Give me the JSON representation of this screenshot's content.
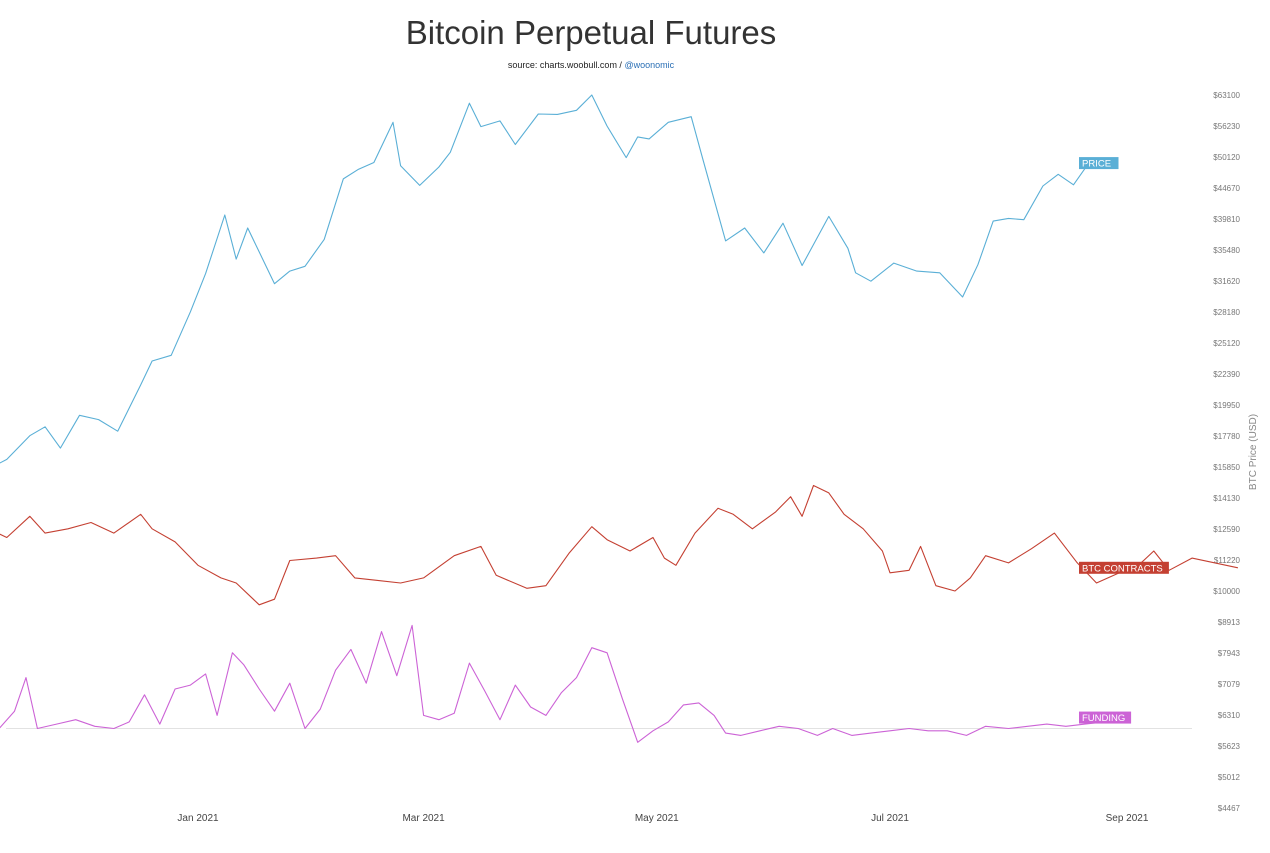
{
  "header": {
    "title": "Bitcoin Perpetual Futures",
    "subtitle_prefix": "source: charts.woobull.com / ",
    "subtitle_handle": "@woonomic"
  },
  "chart_data": {
    "type": "line",
    "title": "Bitcoin Perpetual Futures",
    "subtitle": "source: charts.woobull.com / @woonomic",
    "ylabel": "BTC Price (USD)",
    "y_ticks": [
      "$63100",
      "$56230",
      "$50120",
      "$44670",
      "$39810",
      "$35480",
      "$31620",
      "$28180",
      "$25120",
      "$22390",
      "$19950",
      "$17780",
      "$15850",
      "$14130",
      "$12590",
      "$11220",
      "$10000",
      "$8913",
      "$7943",
      "$7079",
      "$6310",
      "$5623",
      "$5012",
      "$4467"
    ],
    "y_tick_values": [
      63100,
      56230,
      50120,
      44670,
      39810,
      35480,
      31620,
      28180,
      25120,
      22390,
      19950,
      17780,
      15850,
      14130,
      12590,
      11220,
      10000,
      8913,
      7943,
      7079,
      6310,
      5623,
      5012,
      4467
    ],
    "y_scale": "log",
    "x_ticks": [
      "Jan 2021",
      "Mar 2021",
      "May 2021",
      "Jul 2021",
      "Sep 2021"
    ],
    "x_tick_dates": [
      "2021-01-01",
      "2021-03-01",
      "2021-05-01",
      "2021-07-01",
      "2021-09-01"
    ],
    "x_range": [
      "2020-11-06",
      "2021-09-30"
    ],
    "baseline_value": 6000,
    "series": [
      {
        "name": "PRICE",
        "color": "#5aafd6",
        "points": [
          [
            "2020-11-06",
            15600
          ],
          [
            "2020-11-12",
            16300
          ],
          [
            "2020-11-18",
            17800
          ],
          [
            "2020-11-22",
            18400
          ],
          [
            "2020-11-26",
            17000
          ],
          [
            "2020-12-01",
            19200
          ],
          [
            "2020-12-06",
            18900
          ],
          [
            "2020-12-11",
            18100
          ],
          [
            "2020-12-17",
            21500
          ],
          [
            "2020-12-20",
            23500
          ],
          [
            "2020-12-25",
            24000
          ],
          [
            "2020-12-30",
            28200
          ],
          [
            "2021-01-03",
            32500
          ],
          [
            "2021-01-08",
            40400
          ],
          [
            "2021-01-11",
            34300
          ],
          [
            "2021-01-14",
            38500
          ],
          [
            "2021-01-21",
            31300
          ],
          [
            "2021-01-25",
            32800
          ],
          [
            "2021-01-29",
            33400
          ],
          [
            "2021-02-03",
            36900
          ],
          [
            "2021-02-08",
            46200
          ],
          [
            "2021-02-12",
            47900
          ],
          [
            "2021-02-16",
            49100
          ],
          [
            "2021-02-21",
            57000
          ],
          [
            "2021-02-23",
            48500
          ],
          [
            "2021-02-28",
            45100
          ],
          [
            "2021-03-05",
            48300
          ],
          [
            "2021-03-08",
            51000
          ],
          [
            "2021-03-13",
            61200
          ],
          [
            "2021-03-16",
            56100
          ],
          [
            "2021-03-21",
            57300
          ],
          [
            "2021-03-25",
            52500
          ],
          [
            "2021-03-31",
            58800
          ],
          [
            "2021-04-05",
            58700
          ],
          [
            "2021-04-10",
            59600
          ],
          [
            "2021-04-14",
            63500
          ],
          [
            "2021-04-18",
            56200
          ],
          [
            "2021-04-23",
            50000
          ],
          [
            "2021-04-26",
            54000
          ],
          [
            "2021-04-29",
            53600
          ],
          [
            "2021-05-04",
            57000
          ],
          [
            "2021-05-10",
            58200
          ],
          [
            "2021-05-13",
            49800
          ],
          [
            "2021-05-19",
            36700
          ],
          [
            "2021-05-24",
            38500
          ],
          [
            "2021-05-29",
            35100
          ],
          [
            "2021-06-03",
            39200
          ],
          [
            "2021-06-08",
            33500
          ],
          [
            "2021-06-15",
            40200
          ],
          [
            "2021-06-20",
            35700
          ],
          [
            "2021-06-22",
            32600
          ],
          [
            "2021-06-26",
            31600
          ],
          [
            "2021-07-02",
            33800
          ],
          [
            "2021-07-08",
            32800
          ],
          [
            "2021-07-14",
            32600
          ],
          [
            "2021-07-20",
            29800
          ],
          [
            "2021-07-24",
            33600
          ],
          [
            "2021-07-28",
            39500
          ],
          [
            "2021-08-01",
            39900
          ],
          [
            "2021-08-05",
            39700
          ],
          [
            "2021-08-10",
            45000
          ],
          [
            "2021-08-14",
            47000
          ],
          [
            "2021-08-18",
            45200
          ],
          [
            "2021-08-22",
            49000
          ]
        ]
      },
      {
        "name": "BTC CONTRACTS",
        "color": "#c44032",
        "points": [
          [
            "2020-11-06",
            12700
          ],
          [
            "2020-11-12",
            12200
          ],
          [
            "2020-11-18",
            13200
          ],
          [
            "2020-11-22",
            12400
          ],
          [
            "2020-11-28",
            12600
          ],
          [
            "2020-12-04",
            12900
          ],
          [
            "2020-12-10",
            12400
          ],
          [
            "2020-12-17",
            13300
          ],
          [
            "2020-12-20",
            12600
          ],
          [
            "2020-12-26",
            12000
          ],
          [
            "2021-01-01",
            11000
          ],
          [
            "2021-01-07",
            10500
          ],
          [
            "2021-01-11",
            10300
          ],
          [
            "2021-01-17",
            9500
          ],
          [
            "2021-01-21",
            9700
          ],
          [
            "2021-01-25",
            11200
          ],
          [
            "2021-02-01",
            11300
          ],
          [
            "2021-02-06",
            11400
          ],
          [
            "2021-02-11",
            10500
          ],
          [
            "2021-02-17",
            10400
          ],
          [
            "2021-02-23",
            10300
          ],
          [
            "2021-03-01",
            10500
          ],
          [
            "2021-03-09",
            11400
          ],
          [
            "2021-03-16",
            11800
          ],
          [
            "2021-03-20",
            10600
          ],
          [
            "2021-03-28",
            10100
          ],
          [
            "2021-04-02",
            10200
          ],
          [
            "2021-04-08",
            11500
          ],
          [
            "2021-04-14",
            12700
          ],
          [
            "2021-04-18",
            12100
          ],
          [
            "2021-04-24",
            11600
          ],
          [
            "2021-04-30",
            12200
          ],
          [
            "2021-05-03",
            11300
          ],
          [
            "2021-05-06",
            11000
          ],
          [
            "2021-05-11",
            12400
          ],
          [
            "2021-05-17",
            13600
          ],
          [
            "2021-05-21",
            13300
          ],
          [
            "2021-05-26",
            12600
          ],
          [
            "2021-06-01",
            13400
          ],
          [
            "2021-06-05",
            14200
          ],
          [
            "2021-06-08",
            13200
          ],
          [
            "2021-06-11",
            14800
          ],
          [
            "2021-06-15",
            14400
          ],
          [
            "2021-06-19",
            13300
          ],
          [
            "2021-06-24",
            12600
          ],
          [
            "2021-06-29",
            11600
          ],
          [
            "2021-07-01",
            10700
          ],
          [
            "2021-07-06",
            10800
          ],
          [
            "2021-07-09",
            11800
          ],
          [
            "2021-07-13",
            10200
          ],
          [
            "2021-07-18",
            10000
          ],
          [
            "2021-07-22",
            10500
          ],
          [
            "2021-07-26",
            11400
          ],
          [
            "2021-08-01",
            11100
          ],
          [
            "2021-08-07",
            11700
          ],
          [
            "2021-08-13",
            12400
          ],
          [
            "2021-08-19",
            11100
          ],
          [
            "2021-08-24",
            10300
          ],
          [
            "2021-08-30",
            10700
          ],
          [
            "2021-09-04",
            11000
          ],
          [
            "2021-09-08",
            11600
          ],
          [
            "2021-09-12",
            10800
          ],
          [
            "2021-09-18",
            11300
          ],
          [
            "2021-09-24",
            11100
          ],
          [
            "2021-09-30",
            10900
          ]
        ]
      },
      {
        "name": "FUNDING",
        "color": "#cc63d6",
        "points": [
          [
            "2020-11-06",
            6150
          ],
          [
            "2020-11-10",
            6000
          ],
          [
            "2020-11-14",
            6400
          ],
          [
            "2020-11-17",
            7250
          ],
          [
            "2020-11-20",
            6000
          ],
          [
            "2020-11-25",
            6100
          ],
          [
            "2020-11-30",
            6200
          ],
          [
            "2020-12-05",
            6050
          ],
          [
            "2020-12-10",
            6000
          ],
          [
            "2020-12-14",
            6150
          ],
          [
            "2020-12-18",
            6800
          ],
          [
            "2020-12-22",
            6100
          ],
          [
            "2020-12-26",
            6950
          ],
          [
            "2020-12-30",
            7050
          ],
          [
            "2021-01-03",
            7350
          ],
          [
            "2021-01-06",
            6300
          ],
          [
            "2021-01-10",
            7950
          ],
          [
            "2021-01-13",
            7600
          ],
          [
            "2021-01-17",
            6950
          ],
          [
            "2021-01-21",
            6400
          ],
          [
            "2021-01-25",
            7100
          ],
          [
            "2021-01-29",
            6000
          ],
          [
            "2021-02-02",
            6450
          ],
          [
            "2021-02-06",
            7450
          ],
          [
            "2021-02-10",
            8050
          ],
          [
            "2021-02-14",
            7100
          ],
          [
            "2021-02-18",
            8600
          ],
          [
            "2021-02-22",
            7300
          ],
          [
            "2021-02-26",
            8800
          ],
          [
            "2021-03-01",
            6300
          ],
          [
            "2021-03-05",
            6200
          ],
          [
            "2021-03-09",
            6350
          ],
          [
            "2021-03-13",
            7650
          ],
          [
            "2021-03-17",
            6900
          ],
          [
            "2021-03-21",
            6200
          ],
          [
            "2021-03-25",
            7050
          ],
          [
            "2021-03-29",
            6500
          ],
          [
            "2021-04-02",
            6300
          ],
          [
            "2021-04-06",
            6850
          ],
          [
            "2021-04-10",
            7250
          ],
          [
            "2021-04-14",
            8100
          ],
          [
            "2021-04-18",
            7950
          ],
          [
            "2021-04-22",
            6700
          ],
          [
            "2021-04-26",
            5700
          ],
          [
            "2021-04-30",
            5950
          ],
          [
            "2021-05-04",
            6150
          ],
          [
            "2021-05-08",
            6550
          ],
          [
            "2021-05-12",
            6600
          ],
          [
            "2021-05-16",
            6300
          ],
          [
            "2021-05-19",
            5900
          ],
          [
            "2021-05-23",
            5850
          ],
          [
            "2021-05-28",
            5950
          ],
          [
            "2021-06-02",
            6050
          ],
          [
            "2021-06-07",
            6000
          ],
          [
            "2021-06-12",
            5850
          ],
          [
            "2021-06-16",
            6000
          ],
          [
            "2021-06-21",
            5850
          ],
          [
            "2021-06-26",
            5900
          ],
          [
            "2021-07-01",
            5950
          ],
          [
            "2021-07-06",
            6000
          ],
          [
            "2021-07-11",
            5950
          ],
          [
            "2021-07-16",
            5950
          ],
          [
            "2021-07-21",
            5850
          ],
          [
            "2021-07-26",
            6050
          ],
          [
            "2021-08-01",
            6000
          ],
          [
            "2021-08-06",
            6050
          ],
          [
            "2021-08-11",
            6100
          ],
          [
            "2021-08-16",
            6050
          ],
          [
            "2021-08-21",
            6100
          ],
          [
            "2021-08-26",
            6150
          ],
          [
            "2021-08-30",
            6250
          ]
        ]
      }
    ]
  }
}
